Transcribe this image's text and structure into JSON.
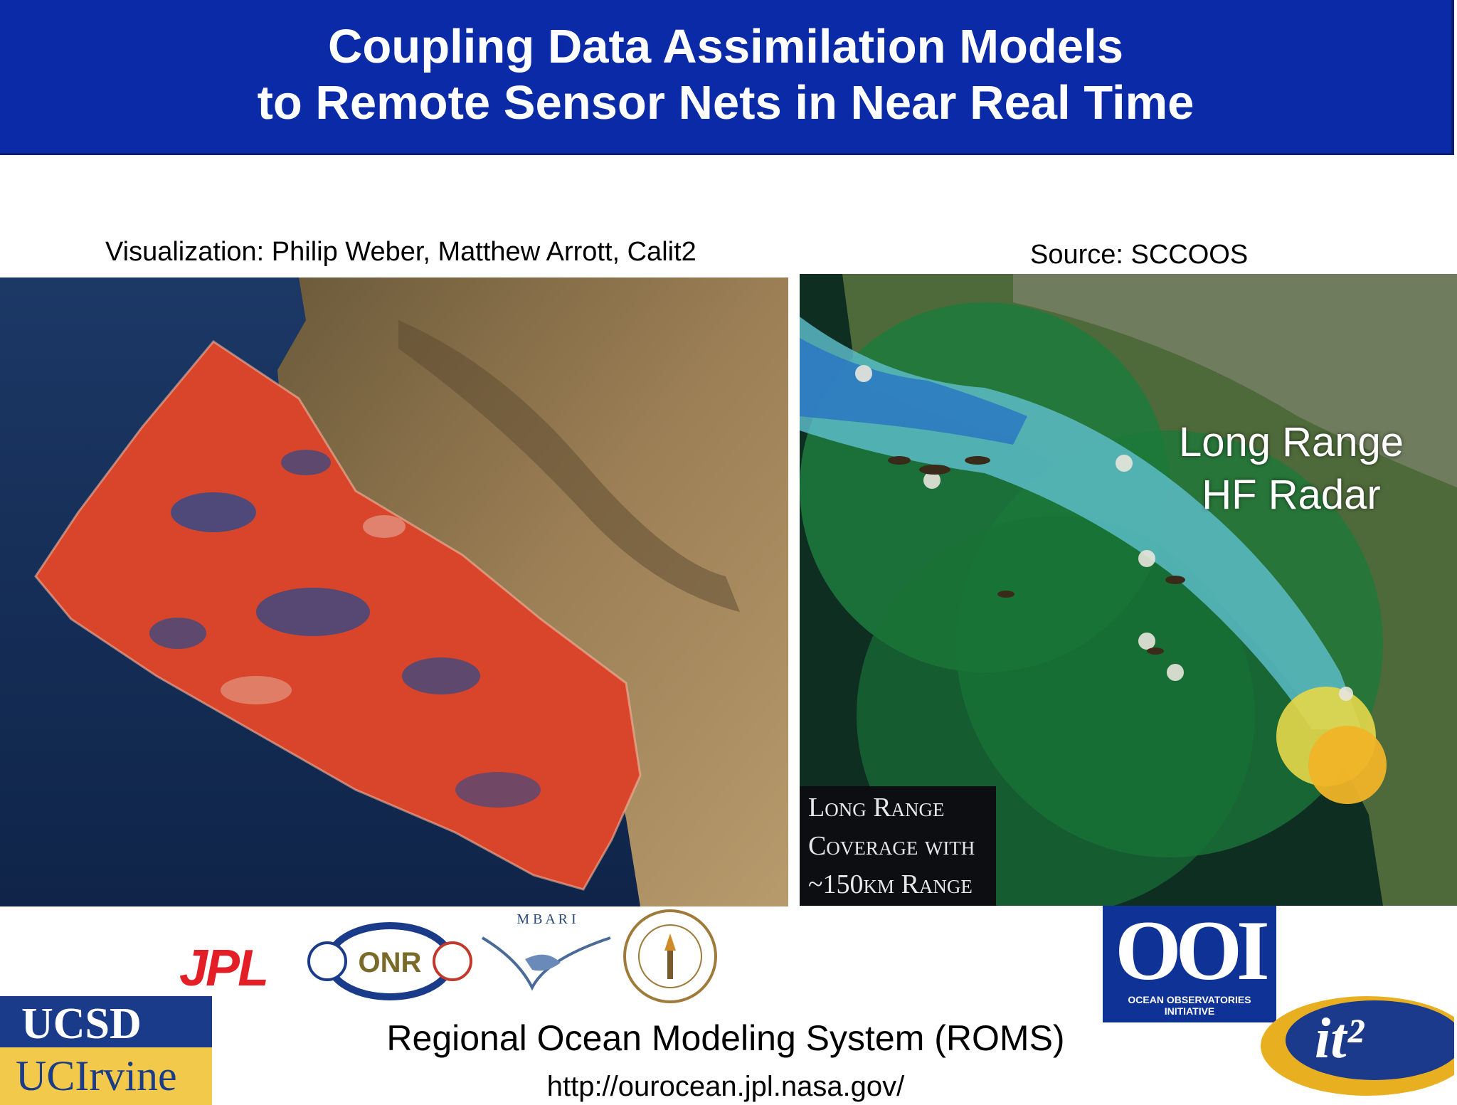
{
  "title": {
    "line1": "Coupling Data Assimilation Models",
    "line2": "to Remote Sensor Nets in Near Real Time"
  },
  "credits": {
    "left": "Visualization: Philip Weber, Matthew Arrott, Calit2",
    "right": "Source: SCCOOS"
  },
  "radar_map": {
    "label_line1": "Long Range",
    "label_line2": "HF Radar",
    "coverage_line1": "Long Range",
    "coverage_line2": "Coverage with",
    "coverage_line3": "~150km Range"
  },
  "logos": {
    "jpl": "JPL",
    "onr_text": "ONR",
    "mbari_text": "M B A R I",
    "ucsd": "UCSD",
    "uci": "UCIrvine",
    "ooi": "OOI",
    "ooi_caption": "OCEAN OBSERVATORIES INITIATIVE",
    "it2": "it²"
  },
  "footer": {
    "title": "Regional Ocean Modeling System (ROMS)",
    "url": "http://ourocean.jpl.nasa.gov/"
  }
}
